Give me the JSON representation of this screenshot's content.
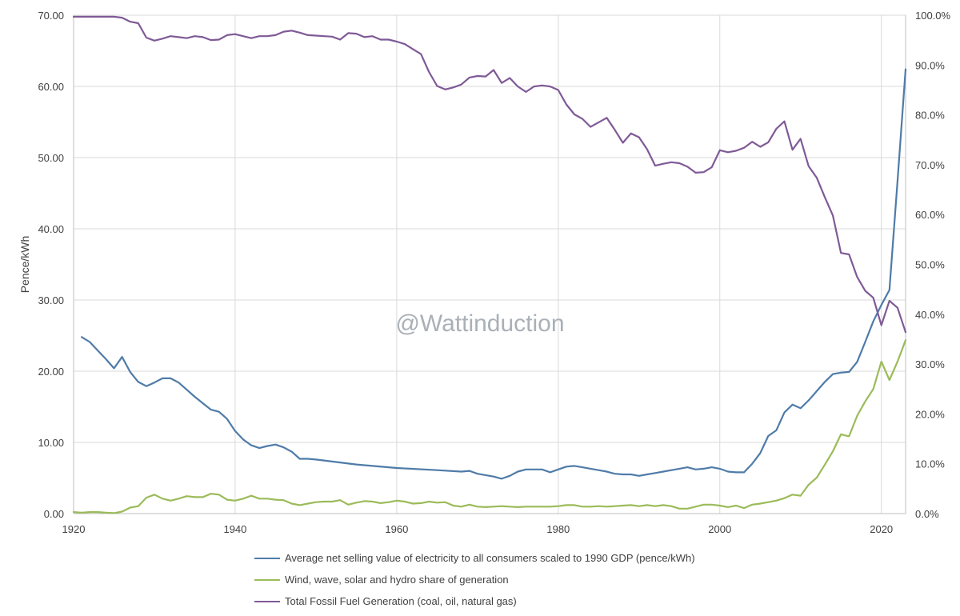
{
  "colors": {
    "price": "#4f7ba8",
    "renewables": "#9bbb59",
    "fossil": "#7f5a96",
    "grid": "#d9d9d9",
    "axis": "#bfbfbf"
  },
  "chart_data": {
    "type": "line",
    "title": "",
    "watermark": "@Wattinduction",
    "ylabel": "Pence/kWh",
    "xlim": [
      1920,
      2023
    ],
    "ylim": [
      0,
      70
    ],
    "y2lim": [
      0,
      100
    ],
    "grid": true,
    "legend_placement": "bottom",
    "x_ticks": [
      "1920",
      "1940",
      "1960",
      "1980",
      "2000",
      "2020"
    ],
    "y_ticks": [
      "0.00",
      "10.00",
      "20.00",
      "30.00",
      "40.00",
      "50.00",
      "60.00",
      "70.00"
    ],
    "y2_ticks": [
      "0.0%",
      "10.0%",
      "20.0%",
      "30.0%",
      "40.0%",
      "50.0%",
      "60.0%",
      "70.0%",
      "80.0%",
      "90.0%",
      "100.0%"
    ],
    "series": [
      {
        "name": "Average net selling value of electricity to all consumers scaled to 1990 GDP (pence/kWh)",
        "axis": "left",
        "color_key": "price",
        "x": [
          1921,
          1922,
          1923,
          1924,
          1925,
          1926,
          1927,
          1928,
          1929,
          1930,
          1931,
          1932,
          1933,
          1934,
          1935,
          1936,
          1937,
          1938,
          1939,
          1940,
          1941,
          1942,
          1943,
          1944,
          1945,
          1946,
          1947,
          1948,
          1949,
          1950,
          1955,
          1960,
          1965,
          1968,
          1969,
          1970,
          1972,
          1973,
          1974,
          1975,
          1976,
          1977,
          1978,
          1979,
          1980,
          1981,
          1982,
          1983,
          1984,
          1985,
          1986,
          1987,
          1988,
          1989,
          1990,
          1991,
          1992,
          1993,
          1994,
          1995,
          1996,
          1997,
          1998,
          1999,
          2000,
          2001,
          2002,
          2003,
          2004,
          2005,
          2006,
          2007,
          2008,
          2009,
          2010,
          2011,
          2012,
          2013,
          2014,
          2015,
          2016,
          2017,
          2018,
          2019,
          2020,
          2021,
          2022,
          2023
        ],
        "values": [
          24.8,
          24.1,
          22.9,
          21.7,
          20.4,
          22.0,
          19.9,
          18.5,
          17.9,
          18.4,
          19.0,
          19.0,
          18.4,
          17.4,
          16.4,
          15.5,
          14.6,
          14.3,
          13.3,
          11.6,
          10.4,
          9.6,
          9.2,
          9.5,
          9.7,
          9.3,
          8.7,
          7.7,
          7.7,
          7.6,
          6.9,
          6.4,
          6.1,
          5.9,
          6.0,
          5.6,
          5.2,
          4.9,
          5.3,
          5.9,
          6.2,
          6.2,
          6.2,
          5.8,
          6.2,
          6.6,
          6.7,
          6.5,
          6.3,
          6.1,
          5.9,
          5.6,
          5.5,
          5.5,
          5.3,
          5.5,
          5.7,
          5.9,
          6.1,
          6.3,
          6.5,
          6.2,
          6.3,
          6.5,
          6.3,
          5.9,
          5.8,
          5.8,
          7.0,
          8.5,
          10.9,
          11.7,
          14.2,
          15.3,
          14.8,
          15.9,
          17.2,
          18.5,
          19.6,
          19.8,
          19.9,
          21.3,
          24.1,
          27.0,
          29.3,
          31.4,
          46.7,
          62.4
        ]
      },
      {
        "name": "Wind, wave, solar and hydro share of generation",
        "axis": "right",
        "color_key": "renewables",
        "x": [
          1920,
          1921,
          1922,
          1923,
          1924,
          1925,
          1926,
          1927,
          1928,
          1929,
          1930,
          1931,
          1932,
          1933,
          1934,
          1935,
          1936,
          1937,
          1938,
          1939,
          1940,
          1941,
          1942,
          1943,
          1944,
          1945,
          1946,
          1947,
          1948,
          1949,
          1950,
          1951,
          1952,
          1953,
          1954,
          1955,
          1956,
          1957,
          1958,
          1959,
          1960,
          1961,
          1962,
          1963,
          1964,
          1965,
          1966,
          1967,
          1968,
          1969,
          1970,
          1971,
          1972,
          1973,
          1974,
          1975,
          1976,
          1977,
          1978,
          1979,
          1980,
          1981,
          1982,
          1983,
          1984,
          1985,
          1986,
          1987,
          1988,
          1989,
          1990,
          1991,
          1992,
          1993,
          1994,
          1995,
          1996,
          1997,
          1998,
          1999,
          2000,
          2001,
          2002,
          2003,
          2004,
          2005,
          2006,
          2007,
          2008,
          2009,
          2010,
          2011,
          2012,
          2013,
          2014,
          2015,
          2016,
          2017,
          2018,
          2019,
          2020,
          2021,
          2022,
          2023
        ],
        "values": [
          0.3,
          0.2,
          0.3,
          0.3,
          0.2,
          0.1,
          0.4,
          1.2,
          1.5,
          3.2,
          3.8,
          3.0,
          2.6,
          3.0,
          3.5,
          3.3,
          3.3,
          4.0,
          3.8,
          2.8,
          2.6,
          3.0,
          3.6,
          3.0,
          3.0,
          2.8,
          2.7,
          2.0,
          1.7,
          2.0,
          2.3,
          2.4,
          2.4,
          2.7,
          1.8,
          2.2,
          2.5,
          2.4,
          2.1,
          2.3,
          2.6,
          2.4,
          2.0,
          2.1,
          2.4,
          2.2,
          2.3,
          1.6,
          1.4,
          1.8,
          1.4,
          1.3,
          1.4,
          1.5,
          1.4,
          1.3,
          1.4,
          1.4,
          1.4,
          1.4,
          1.5,
          1.7,
          1.7,
          1.4,
          1.4,
          1.5,
          1.4,
          1.5,
          1.6,
          1.7,
          1.5,
          1.7,
          1.5,
          1.7,
          1.5,
          1.0,
          1.0,
          1.4,
          1.8,
          1.8,
          1.6,
          1.3,
          1.6,
          1.1,
          1.8,
          2.0,
          2.3,
          2.6,
          3.1,
          3.8,
          3.6,
          5.8,
          7.2,
          9.8,
          12.5,
          15.9,
          15.5,
          19.6,
          22.5,
          25.0,
          30.5,
          26.8,
          30.5,
          34.8
        ]
      },
      {
        "name": "Total Fossil Fuel Generation (coal, oil,  natural gas)",
        "axis": "right",
        "color_key": "fossil",
        "x": [
          1920,
          1921,
          1922,
          1923,
          1924,
          1925,
          1926,
          1927,
          1928,
          1929,
          1930,
          1931,
          1932,
          1933,
          1934,
          1935,
          1936,
          1937,
          1938,
          1939,
          1940,
          1941,
          1942,
          1943,
          1944,
          1945,
          1946,
          1947,
          1948,
          1949,
          1950,
          1951,
          1952,
          1953,
          1954,
          1955,
          1956,
          1957,
          1958,
          1959,
          1960,
          1961,
          1962,
          1963,
          1964,
          1965,
          1966,
          1967,
          1968,
          1969,
          1970,
          1971,
          1972,
          1973,
          1974,
          1975,
          1976,
          1977,
          1978,
          1979,
          1980,
          1981,
          1982,
          1983,
          1984,
          1985,
          1986,
          1987,
          1988,
          1989,
          1990,
          1991,
          1992,
          1993,
          1994,
          1995,
          1996,
          1997,
          1998,
          1999,
          2000,
          2001,
          2002,
          2003,
          2004,
          2005,
          2006,
          2007,
          2008,
          2009,
          2010,
          2011,
          2012,
          2013,
          2014,
          2015,
          2016,
          2017,
          2018,
          2019,
          2020,
          2021,
          2022,
          2023
        ],
        "values": [
          99.7,
          99.7,
          99.7,
          99.7,
          99.7,
          99.7,
          99.5,
          98.7,
          98.4,
          95.5,
          94.9,
          95.3,
          95.8,
          95.6,
          95.4,
          95.8,
          95.6,
          95.0,
          95.1,
          96.0,
          96.2,
          95.8,
          95.4,
          95.8,
          95.8,
          96.0,
          96.7,
          96.9,
          96.5,
          96.0,
          95.9,
          95.8,
          95.7,
          95.1,
          96.4,
          96.3,
          95.6,
          95.8,
          95.1,
          95.1,
          94.7,
          94.2,
          93.2,
          92.2,
          88.6,
          85.8,
          85.1,
          85.5,
          86.1,
          87.5,
          87.8,
          87.7,
          89.0,
          86.4,
          87.4,
          85.7,
          84.6,
          85.7,
          85.9,
          85.7,
          85.0,
          82.1,
          80.1,
          79.2,
          77.6,
          78.5,
          79.4,
          77.0,
          74.4,
          76.3,
          75.5,
          73.1,
          69.8,
          70.2,
          70.5,
          70.3,
          69.6,
          68.4,
          68.5,
          69.5,
          72.9,
          72.5,
          72.8,
          73.4,
          74.6,
          73.6,
          74.5,
          77.2,
          78.7,
          73.0,
          75.2,
          69.7,
          67.4,
          63.5,
          59.8,
          52.3,
          52.0,
          47.5,
          44.7,
          43.3,
          37.8,
          42.7,
          41.3,
          36.4
        ]
      }
    ]
  }
}
